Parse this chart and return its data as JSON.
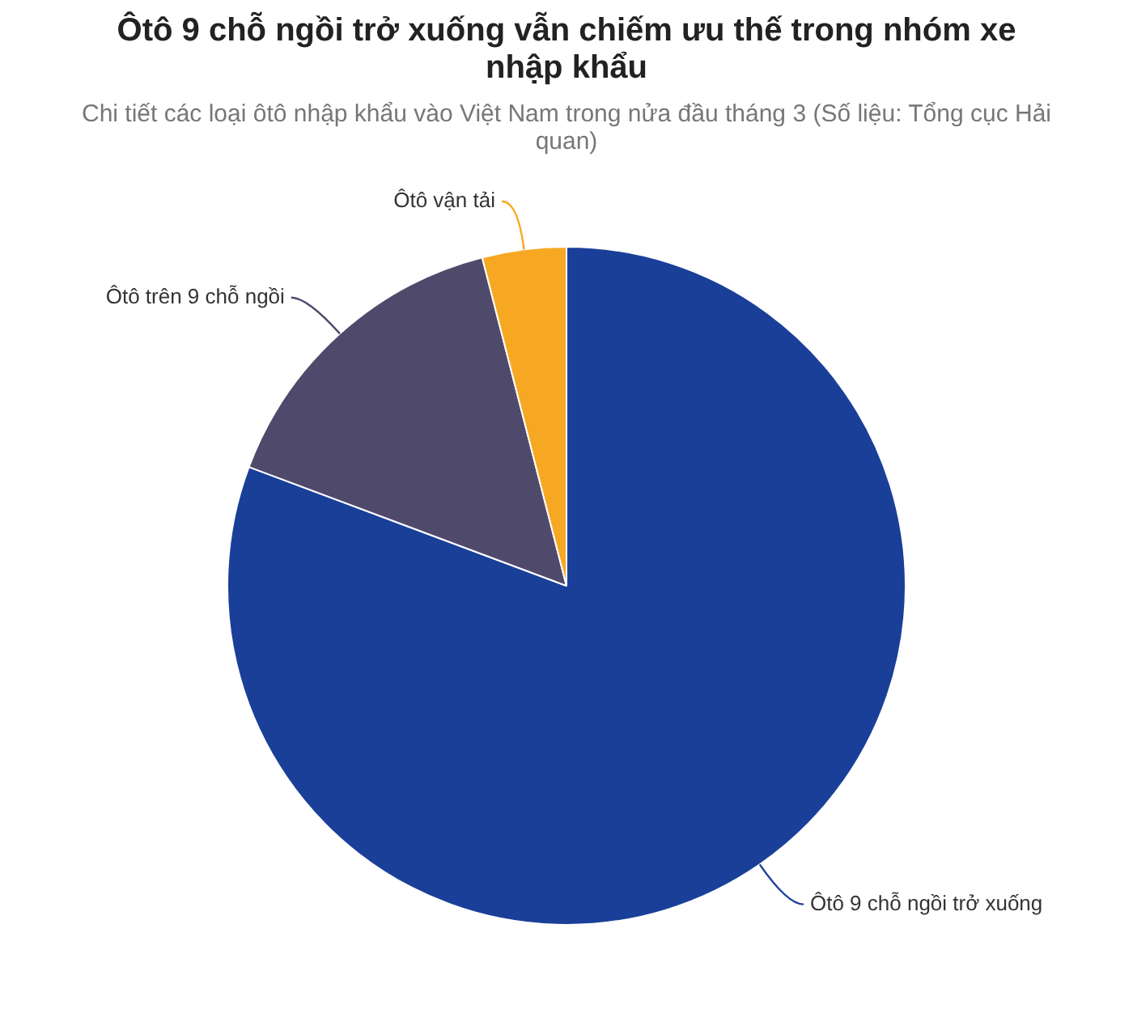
{
  "chart_data": {
    "type": "pie",
    "title": "Ôtô 9 chỗ ngồi trở xuống vẫn chiếm ưu thế trong nhóm xe nhập khẩu",
    "subtitle": "Chi tiết các loại ôtô nhập khẩu vào Việt Nam trong nửa đầu tháng 3 (Số liệu: Tổng cục Hải quan)",
    "categories": [
      "Ôtô 9 chỗ ngồi trở xuống",
      "Ôtô trên 9 chỗ ngồi",
      "Ôtô vận tải"
    ],
    "values": [
      80.7,
      15.3,
      4.0
    ],
    "colors": [
      "#1a3f99",
      "#4f4a6b",
      "#f7a823"
    ],
    "legend": false
  }
}
